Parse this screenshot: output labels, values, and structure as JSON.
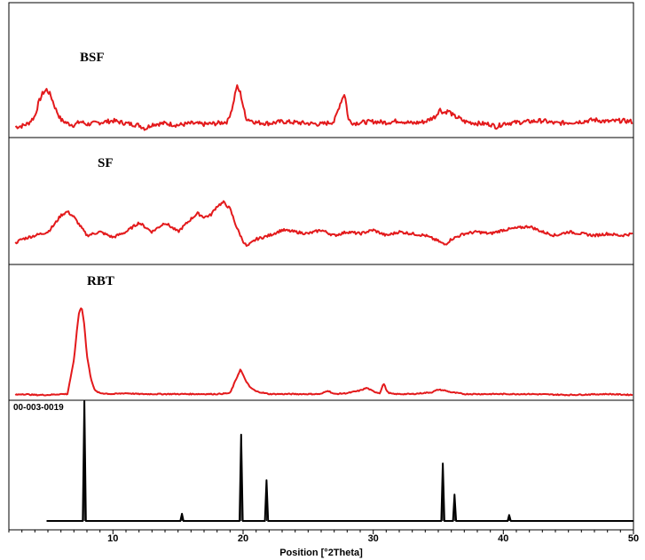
{
  "chart_data": [
    {
      "type": "line",
      "label": "BSF",
      "color": "#e31a1c",
      "xlim": [
        2,
        50
      ],
      "series": [
        {
          "name": "BSF",
          "x": [
            2.5,
            3.0,
            3.5,
            4.0,
            4.3,
            4.6,
            4.9,
            5.2,
            5.6,
            6.0,
            6.5,
            7.0,
            7.5,
            8.0,
            9.0,
            10.0,
            11.0,
            12.0,
            12.5,
            13.0,
            14.0,
            15.0,
            16.0,
            17.0,
            18.0,
            18.8,
            19.2,
            19.5,
            19.8,
            20.2,
            21.0,
            22.0,
            23.0,
            24.0,
            25.0,
            26.0,
            27.0,
            27.5,
            27.8,
            28.1,
            28.5,
            29.0,
            30.0,
            31.0,
            32.0,
            33.0,
            34.0,
            34.8,
            35.1,
            35.4,
            35.8,
            36.2,
            36.6,
            37.0,
            38.0,
            39.0,
            39.5,
            40.0,
            41.0,
            42.0,
            43.0,
            44.0,
            45.0,
            46.0,
            47.0,
            48.0,
            49.0,
            50.0
          ],
          "y": [
            2,
            3,
            6,
            14,
            30,
            40,
            44,
            38,
            22,
            10,
            6,
            4,
            8,
            5,
            7,
            9,
            6,
            4,
            0,
            5,
            6,
            4,
            6,
            5,
            6,
            8,
            25,
            48,
            40,
            12,
            7,
            6,
            8,
            7,
            6,
            5,
            8,
            30,
            40,
            10,
            6,
            7,
            8,
            7,
            9,
            6,
            8,
            14,
            22,
            18,
            20,
            14,
            12,
            8,
            6,
            5,
            2,
            6,
            7,
            8,
            9,
            6,
            7,
            8,
            10,
            8,
            9,
            8
          ]
        }
      ]
    },
    {
      "type": "line",
      "label": "SF",
      "color": "#e31a1c",
      "xlim": [
        2,
        50
      ],
      "series": [
        {
          "name": "SF",
          "x": [
            2.5,
            3.0,
            4.0,
            5.0,
            5.5,
            6.0,
            6.5,
            7.0,
            7.5,
            8.0,
            9.0,
            10.0,
            11.0,
            12.0,
            13.0,
            14.0,
            15.0,
            16.0,
            16.5,
            17.0,
            17.5,
            18.0,
            18.5,
            19.0,
            19.5,
            20.0,
            20.3,
            21.0,
            22.0,
            23.0,
            24.0,
            25.0,
            26.0,
            27.0,
            28.0,
            29.0,
            30.0,
            31.0,
            32.0,
            33.0,
            34.0,
            35.0,
            35.5,
            36.0,
            37.0,
            38.0,
            39.0,
            40.0,
            41.0,
            42.0,
            43.0,
            44.0,
            45.0,
            46.0,
            47.0,
            48.0,
            49.0,
            50.0
          ],
          "y": [
            8,
            12,
            16,
            20,
            28,
            38,
            42,
            36,
            26,
            16,
            20,
            14,
            20,
            30,
            20,
            30,
            20,
            34,
            40,
            36,
            38,
            48,
            52,
            45,
            25,
            10,
            4,
            12,
            16,
            22,
            20,
            18,
            22,
            16,
            20,
            18,
            22,
            16,
            20,
            18,
            16,
            10,
            6,
            12,
            18,
            20,
            18,
            22,
            24,
            26,
            20,
            16,
            20,
            18,
            16,
            18,
            16,
            18
          ]
        }
      ]
    },
    {
      "type": "line",
      "label": "RBT",
      "color": "#e31a1c",
      "xlim": [
        2,
        50
      ],
      "series": [
        {
          "name": "RBT",
          "x": [
            2.5,
            3.0,
            4.0,
            5.0,
            6.0,
            6.5,
            7.0,
            7.2,
            7.4,
            7.6,
            7.8,
            8.0,
            8.3,
            8.6,
            9.0,
            10.0,
            11.0,
            12.0,
            14.0,
            16.0,
            18.0,
            19.0,
            19.5,
            19.8,
            20.1,
            20.5,
            21.0,
            22.0,
            24.0,
            26.0,
            26.5,
            27.0,
            28.0,
            29.0,
            29.5,
            30.0,
            30.5,
            30.8,
            31.1,
            31.5,
            33.0,
            34.5,
            35.0,
            35.5,
            36.0,
            37.0,
            38.0,
            40.0,
            42.0,
            45.0,
            48.0,
            50.0
          ],
          "y": [
            1,
            2,
            1,
            1,
            2,
            2,
            40,
            70,
            95,
            100,
            80,
            45,
            20,
            6,
            3,
            2,
            3,
            2,
            2,
            2,
            2,
            3,
            20,
            30,
            20,
            10,
            5,
            2,
            2,
            2,
            6,
            2,
            3,
            6,
            9,
            5,
            3,
            14,
            4,
            2,
            2,
            4,
            7,
            6,
            4,
            2,
            2,
            2,
            2,
            1,
            2,
            1
          ]
        }
      ]
    },
    {
      "type": "line",
      "label": "00-003-0019",
      "color": "#000000",
      "xlabel": "Position [°2Theta]",
      "xlim": [
        2,
        50
      ],
      "xticks": [
        10,
        20,
        30,
        40,
        50
      ],
      "peaks": [
        {
          "x": 7.8,
          "y": 100
        },
        {
          "x": 15.3,
          "y": 6
        },
        {
          "x": 19.85,
          "y": 72
        },
        {
          "x": 21.8,
          "y": 34
        },
        {
          "x": 35.35,
          "y": 48
        },
        {
          "x": 36.25,
          "y": 22
        },
        {
          "x": 40.45,
          "y": 5
        }
      ]
    }
  ]
}
